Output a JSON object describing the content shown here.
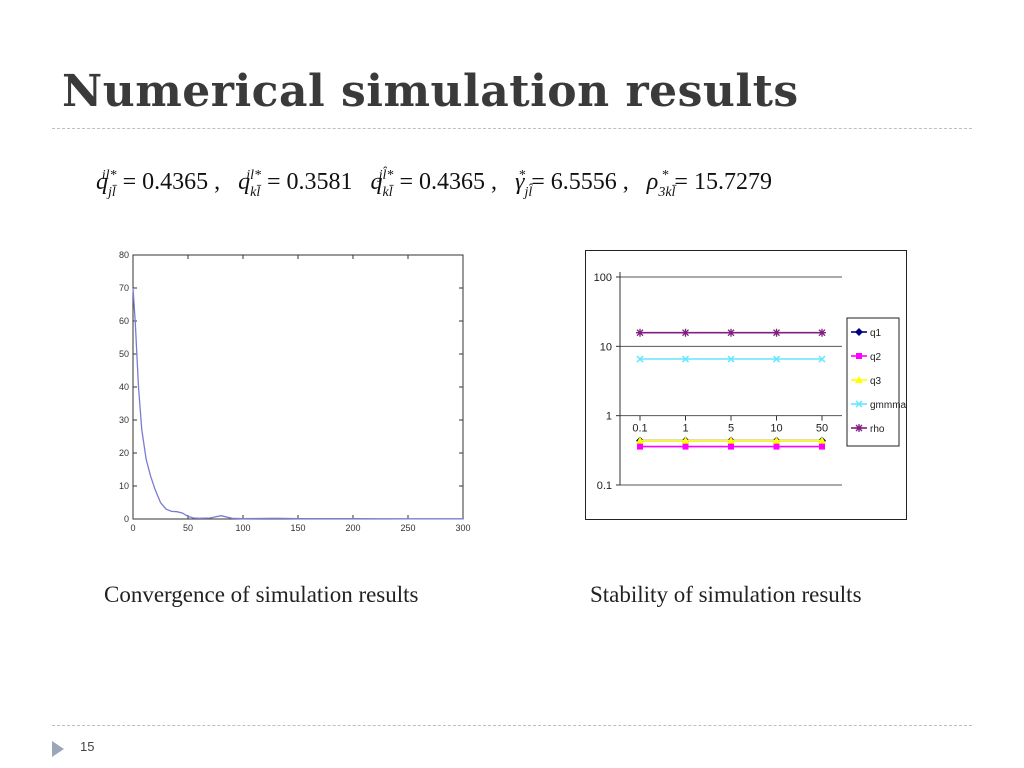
{
  "slide": {
    "title": "Numerical simulation results",
    "page_number": "15",
    "formula": [
      {
        "symbol": "q",
        "sub": "jl̄",
        "sup": "il*",
        "value": "= 0.4365",
        "sep": ","
      },
      {
        "symbol": "q",
        "sub": "kl̄",
        "sup": "il*",
        "value": "= 0.3581",
        "sep": ""
      },
      {
        "symbol": "q",
        "sub": "kl̄",
        "sup": "jl̂*",
        "value": "= 0.4365",
        "sep": ","
      },
      {
        "symbol": "γ",
        "sub": "jl̂",
        "sup": "*",
        "value": "= 6.5556",
        "sep": ","
      },
      {
        "symbol": "ρ",
        "sub": "3kl̄",
        "sup": "*",
        "value": "= 15.7279",
        "sep": ""
      }
    ],
    "captions": {
      "left": "Convergence of simulation results",
      "right": "Stability of simulation results"
    }
  },
  "chart_data": [
    {
      "type": "line",
      "title": "",
      "xlabel": "",
      "ylabel": "",
      "xlim": [
        0,
        300
      ],
      "ylim": [
        0,
        80
      ],
      "xticks": [
        0,
        50,
        100,
        150,
        200,
        250,
        300
      ],
      "yticks": [
        0,
        10,
        20,
        30,
        40,
        50,
        60,
        70,
        80
      ],
      "line_color": "#7b7bd4",
      "series": [
        {
          "x": [
            0,
            2,
            5,
            8,
            12,
            16,
            20,
            25,
            30,
            35,
            40,
            45,
            50,
            55,
            60,
            70,
            80,
            90,
            100,
            130,
            150,
            200,
            250,
            300
          ],
          "y": [
            70,
            60,
            40,
            27,
            18,
            13,
            9,
            5,
            3,
            2.3,
            2.2,
            1.8,
            0.8,
            0.3,
            0.2,
            0.3,
            1.0,
            0.2,
            0.1,
            0.2,
            0.1,
            0.1,
            0.05,
            0.05
          ]
        }
      ]
    },
    {
      "type": "line",
      "title": "",
      "yscale": "log",
      "ylim": [
        0.1,
        100
      ],
      "yticks": [
        "0.1",
        "1",
        "10",
        "100"
      ],
      "categories": [
        "0.1",
        "1",
        "5",
        "10",
        "50"
      ],
      "legend_position": "right",
      "series": [
        {
          "name": "q1",
          "color": "#00007f",
          "marker": "diamond",
          "values": [
            0.4365,
            0.4365,
            0.4365,
            0.4365,
            0.4365
          ]
        },
        {
          "name": "q2",
          "color": "#ff00ff",
          "marker": "square",
          "values": [
            0.3581,
            0.3581,
            0.3581,
            0.3581,
            0.3581
          ]
        },
        {
          "name": "q3",
          "color": "#ffff00",
          "marker": "triangle",
          "values": [
            0.4365,
            0.4365,
            0.4365,
            0.4365,
            0.4365
          ]
        },
        {
          "name": "gmmma",
          "color": "#66e6ff",
          "marker": "x",
          "values": [
            6.5556,
            6.5556,
            6.5556,
            6.5556,
            6.5556
          ]
        },
        {
          "name": "rho",
          "color": "#7f1f7f",
          "marker": "star",
          "values": [
            15.7279,
            15.7279,
            15.7279,
            15.7279,
            15.7279
          ]
        }
      ]
    }
  ]
}
